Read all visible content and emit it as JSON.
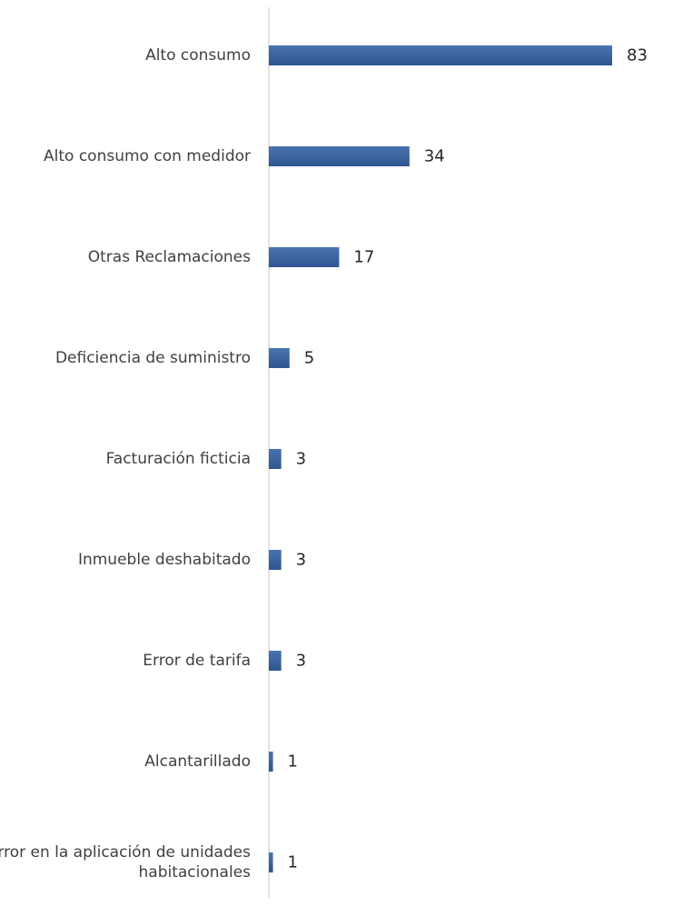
{
  "chart_data": {
    "type": "bar",
    "orientation": "horizontal",
    "title": "",
    "xlabel": "",
    "ylabel": "",
    "grid": false,
    "legend": "none",
    "xlim": [
      0,
      83
    ],
    "categories": [
      "Alto consumo",
      "Alto consumo con medidor",
      "Otras Reclamaciones",
      "Deficiencia de suministro",
      "Facturación ficticia",
      "Inmueble deshabitado",
      "Error de tarifa",
      "Alcantarillado",
      "Error en la aplicación de unidades habitacionales"
    ],
    "category_lines": [
      [
        "Alto consumo"
      ],
      [
        "Alto consumo con medidor"
      ],
      [
        "Otras Reclamaciones"
      ],
      [
        "Deficiencia de suministro"
      ],
      [
        "Facturación ficticia"
      ],
      [
        "Inmueble deshabitado"
      ],
      [
        "Error de tarifa"
      ],
      [
        "Alcantarillado"
      ],
      [
        "Error en la aplicación de unidades",
        "habitacionales"
      ]
    ],
    "values": [
      83,
      34,
      17,
      5,
      3,
      3,
      3,
      1,
      1
    ],
    "bar_color": "#4a74b0",
    "bar_color_dark": "#2e5590",
    "axis_color": "#d9d9d9"
  }
}
